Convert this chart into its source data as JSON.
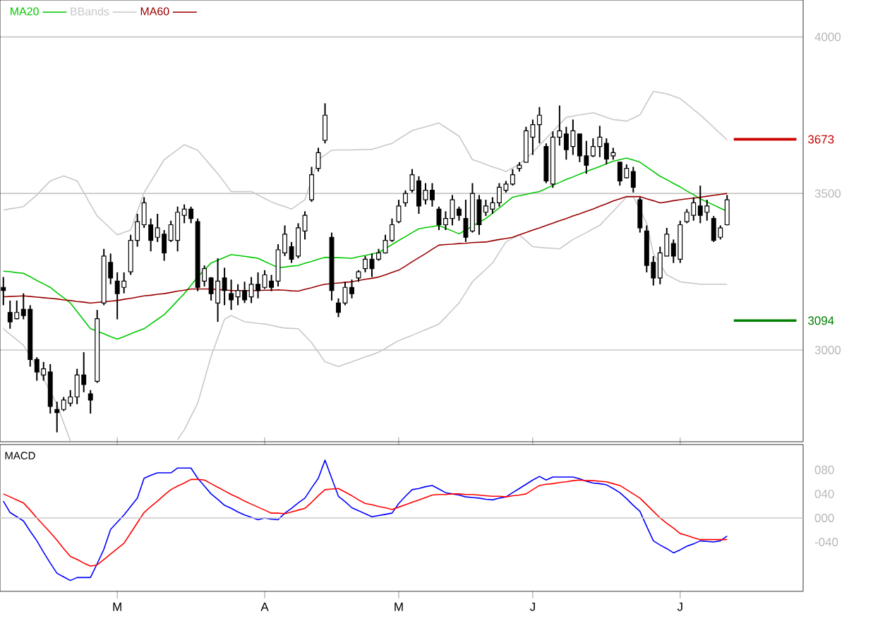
{
  "chart_data": [
    {
      "type": "candlestick",
      "color": "#000000",
      "categories": [
        null,
        null,
        null,
        null,
        null,
        null,
        null,
        null,
        null,
        null,
        null,
        null,
        null,
        null,
        null,
        null,
        null,
        null,
        null,
        null,
        null,
        null,
        null,
        null,
        null,
        null,
        null,
        null,
        null,
        null,
        null,
        null,
        null,
        null,
        null,
        null,
        null,
        null,
        null,
        null,
        null,
        null,
        null,
        null,
        null,
        null,
        null,
        null,
        null,
        null,
        null,
        null,
        null,
        null,
        null,
        null,
        null,
        null,
        null,
        null,
        null,
        null,
        null,
        null,
        null,
        null,
        null,
        null,
        null,
        null,
        null,
        null,
        null,
        null,
        null,
        null,
        null,
        null,
        null,
        null,
        null,
        null,
        null,
        null,
        null,
        null,
        null,
        null,
        null,
        null,
        null,
        null,
        null,
        null,
        null,
        null,
        null,
        null,
        null,
        null,
        null,
        null,
        null,
        null,
        null,
        null,
        null,
        null,
        null
      ],
      "ohlc": [
        [
          3200,
          3233,
          3143,
          3190
        ],
        [
          3120,
          3158,
          3068,
          3090
        ],
        [
          3100,
          3158,
          3098,
          3120
        ],
        [
          3130,
          3181,
          3098,
          3110
        ],
        [
          3130,
          3143,
          2947,
          2970
        ],
        [
          2970,
          2977,
          2902,
          2930
        ],
        [
          2920,
          2962,
          2902,
          2940
        ],
        [
          2930,
          2955,
          2797,
          2820
        ],
        [
          2810,
          2835,
          2737,
          2800
        ],
        [
          2810,
          2850,
          2805,
          2840
        ],
        [
          2830,
          2872,
          2820,
          2850
        ],
        [
          2850,
          2940,
          2827,
          2920
        ],
        [
          2920,
          2993,
          2865,
          2890
        ],
        [
          2860,
          2872,
          2797,
          2840
        ],
        [
          2900,
          3128,
          2895,
          3100
        ],
        [
          3150,
          3323,
          3143,
          3300
        ],
        [
          3280,
          3308,
          3210,
          3230
        ],
        [
          3220,
          3248,
          3098,
          3180
        ],
        [
          3200,
          3248,
          3181,
          3220
        ],
        [
          3250,
          3368,
          3240,
          3350
        ],
        [
          3350,
          3435,
          3330,
          3410
        ],
        [
          3400,
          3488,
          3390,
          3470
        ],
        [
          3400,
          3420,
          3315,
          3350
        ],
        [
          3360,
          3435,
          3345,
          3390
        ],
        [
          3370,
          3383,
          3285,
          3310
        ],
        [
          3350,
          3413,
          3345,
          3400
        ],
        [
          3350,
          3458,
          3315,
          3440
        ],
        [
          3430,
          3465,
          3405,
          3450
        ],
        [
          3450,
          3458,
          3405,
          3420
        ],
        [
          3410,
          3420,
          3188,
          3200
        ],
        [
          3220,
          3270,
          3203,
          3260
        ],
        [
          3230,
          3233,
          3158,
          3180
        ],
        [
          3150,
          3293,
          3090,
          3220
        ],
        [
          3230,
          3263,
          3143,
          3190
        ],
        [
          3180,
          3225,
          3128,
          3160
        ],
        [
          3170,
          3210,
          3143,
          3190
        ],
        [
          3190,
          3218,
          3150,
          3160
        ],
        [
          3170,
          3233,
          3150,
          3210
        ],
        [
          3210,
          3248,
          3165,
          3190
        ],
        [
          3200,
          3255,
          3195,
          3240
        ],
        [
          3220,
          3240,
          3188,
          3200
        ],
        [
          3220,
          3338,
          3203,
          3320
        ],
        [
          3310,
          3398,
          3300,
          3370
        ],
        [
          3330,
          3345,
          3278,
          3290
        ],
        [
          3300,
          3405,
          3293,
          3390
        ],
        [
          3380,
          3443,
          3353,
          3430
        ],
        [
          3480,
          3585,
          3473,
          3560
        ],
        [
          3580,
          3646,
          3570,
          3630
        ],
        [
          3670,
          3788,
          3660,
          3750
        ],
        [
          3360,
          3375,
          3158,
          3190
        ],
        [
          3150,
          3165,
          3105,
          3120
        ],
        [
          3150,
          3218,
          3143,
          3200
        ],
        [
          3200,
          3225,
          3165,
          3180
        ],
        [
          3230,
          3255,
          3218,
          3250
        ],
        [
          3260,
          3300,
          3248,
          3290
        ],
        [
          3290,
          3308,
          3233,
          3260
        ],
        [
          3290,
          3323,
          3285,
          3310
        ],
        [
          3310,
          3368,
          3308,
          3350
        ],
        [
          3350,
          3420,
          3345,
          3400
        ],
        [
          3410,
          3480,
          3405,
          3460
        ],
        [
          3470,
          3510,
          3458,
          3500
        ],
        [
          3510,
          3578,
          3503,
          3560
        ],
        [
          3540,
          3555,
          3435,
          3460
        ],
        [
          3480,
          3533,
          3465,
          3510
        ],
        [
          3510,
          3533,
          3458,
          3480
        ],
        [
          3450,
          3458,
          3383,
          3400
        ],
        [
          3400,
          3443,
          3383,
          3420
        ],
        [
          3420,
          3495,
          3398,
          3480
        ],
        [
          3450,
          3458,
          3413,
          3430
        ],
        [
          3420,
          3480,
          3345,
          3360
        ],
        [
          3380,
          3533,
          3375,
          3500
        ],
        [
          3480,
          3495,
          3368,
          3400
        ],
        [
          3440,
          3480,
          3428,
          3460
        ],
        [
          3450,
          3488,
          3435,
          3470
        ],
        [
          3470,
          3533,
          3458,
          3520
        ],
        [
          3510,
          3540,
          3503,
          3530
        ],
        [
          3530,
          3578,
          3525,
          3560
        ],
        [
          3580,
          3600,
          3570,
          3590
        ],
        [
          3600,
          3713,
          3600,
          3700
        ],
        [
          3680,
          3736,
          3623,
          3720
        ],
        [
          3720,
          3776,
          3660,
          3750
        ],
        [
          3650,
          3660,
          3533,
          3540
        ],
        [
          3530,
          3698,
          3518,
          3680
        ],
        [
          3680,
          3781,
          3653,
          3700
        ],
        [
          3690,
          3713,
          3608,
          3640
        ],
        [
          3650,
          3736,
          3623,
          3700
        ],
        [
          3690,
          3691,
          3600,
          3620
        ],
        [
          3620,
          3668,
          3563,
          3590
        ],
        [
          3620,
          3676,
          3616,
          3650
        ],
        [
          3650,
          3716,
          3616,
          3680
        ],
        [
          3660,
          3676,
          3593,
          3610
        ],
        [
          3620,
          3646,
          3608,
          3630
        ],
        [
          3600,
          3600,
          3525,
          3540
        ],
        [
          3550,
          3593,
          3548,
          3580
        ],
        [
          3570,
          3585,
          3503,
          3520
        ],
        [
          3480,
          3488,
          3375,
          3390
        ],
        [
          3380,
          3398,
          3248,
          3270
        ],
        [
          3280,
          3300,
          3206,
          3230
        ],
        [
          3230,
          3330,
          3210,
          3310
        ],
        [
          3300,
          3390,
          3300,
          3370
        ],
        [
          3340,
          3353,
          3278,
          3300
        ],
        [
          3290,
          3413,
          3278,
          3400
        ],
        [
          3410,
          3450,
          3405,
          3440
        ],
        [
          3430,
          3488,
          3413,
          3470
        ],
        [
          3460,
          3525,
          3405,
          3430
        ],
        [
          3440,
          3480,
          3413,
          3460
        ],
        [
          3420,
          3428,
          3345,
          3350
        ],
        [
          3360,
          3398,
          3353,
          3390
        ],
        [
          3400,
          3495,
          3398,
          3480
        ]
      ],
      "series": [
        {
          "type": "line",
          "name": "MA20",
          "color": "#00c800",
          "values": [
            3252,
            3250,
            3247,
            3245,
            3234,
            3222,
            3211,
            3200,
            3183,
            3167,
            3150,
            3123,
            3095,
            3068,
            3060,
            3052,
            3043,
            3035,
            3043,
            3052,
            3060,
            3068,
            3083,
            3098,
            3113,
            3135,
            3158,
            3180,
            3207,
            3233,
            3256,
            3278,
            3287,
            3296,
            3305,
            3302,
            3299,
            3296,
            3293,
            3283,
            3273,
            3263,
            3265,
            3268,
            3270,
            3277,
            3283,
            3290,
            3296,
            3295,
            3295,
            3294,
            3293,
            3298,
            3302,
            3307,
            3311,
            3324,
            3337,
            3350,
            3362,
            3375,
            3387,
            3391,
            3394,
            3398,
            3389,
            3380,
            3371,
            3383,
            3396,
            3408,
            3420,
            3437,
            3454,
            3471,
            3488,
            3493,
            3497,
            3502,
            3506,
            3516,
            3526,
            3535,
            3545,
            3553,
            3562,
            3570,
            3578,
            3586,
            3595,
            3603,
            3608,
            3613,
            3607,
            3600,
            3585,
            3570,
            3555,
            3544,
            3532,
            3521,
            3508,
            3496,
            3483,
            3473,
            3463,
            3453,
            3443
          ]
        },
        {
          "type": "line",
          "name": "BBands",
          "color": "#c8c8c8",
          "values": [
            3447,
            3451,
            3454,
            3458,
            3477,
            3495,
            3518,
            3540,
            3548,
            3556,
            3548,
            3540,
            3503,
            3465,
            3428,
            3408,
            3388,
            3368,
            3376,
            3383,
            3443,
            3503,
            3538,
            3573,
            3608,
            3624,
            3640,
            3656,
            3647,
            3638,
            3613,
            3588,
            3563,
            3535,
            3506,
            3506,
            3506,
            3506,
            3495,
            3484,
            3473,
            3465,
            3458,
            3450,
            3465,
            3480,
            3544,
            3608,
            3623,
            3638,
            3639,
            3639,
            3639,
            3640,
            3640,
            3641,
            3647,
            3654,
            3660,
            3674,
            3687,
            3701,
            3707,
            3713,
            3719,
            3725,
            3711,
            3697,
            3683,
            3646,
            3608,
            3601,
            3593,
            3585,
            3578,
            3570,
            3582,
            3593,
            3612,
            3631,
            3654,
            3676,
            3698,
            3721,
            3743,
            3747,
            3751,
            3754,
            3758,
            3751,
            3743,
            3736,
            3734,
            3731,
            3741,
            3751,
            3789,
            3826,
            3822,
            3818,
            3811,
            3803,
            3786,
            3768,
            3751,
            3731,
            3711,
            3691,
            3671
          ]
        },
        {
          "type": "line",
          "color": "#c8c8c8",
          "values": [
            3068,
            3050,
            3033,
            3015,
            2981,
            2947,
            2907,
            2867,
            2827,
            2767,
            2710,
            null,
            null,
            null,
            null,
            null,
            null,
            null,
            null,
            null,
            null,
            null,
            null,
            null,
            null,
            null,
            2714,
            2745,
            2788,
            2830,
            2905,
            2980,
            3039,
            3098,
            3110,
            3100,
            3090,
            3088,
            3085,
            3083,
            3079,
            3074,
            3070,
            3069,
            3068,
            3046,
            3023,
            2993,
            2962,
            2955,
            2947,
            2955,
            2962,
            2970,
            2978,
            2985,
            2993,
            3005,
            3018,
            3030,
            3039,
            3047,
            3056,
            3065,
            3074,
            3083,
            3105,
            3128,
            3150,
            3184,
            3218,
            3238,
            3258,
            3278,
            3312,
            3345,
            3357,
            3368,
            3349,
            3330,
            3328,
            3326,
            3325,
            3323,
            3338,
            3353,
            3364,
            3375,
            3387,
            3398,
            3421,
            3443,
            3466,
            3488,
            3490,
            3448,
            3405,
            3308,
            3274,
            3240,
            3229,
            3218,
            3215,
            3213,
            3210,
            3210,
            3210,
            3210,
            3210
          ]
        },
        {
          "type": "line",
          "name": "MA60",
          "color": "#990000",
          "values": [
            3170,
            3171,
            3172,
            3173,
            3171,
            3169,
            3167,
            3165,
            3163,
            3160,
            3158,
            3155,
            3153,
            3150,
            3152,
            3154,
            3156,
            3158,
            3162,
            3165,
            3169,
            3173,
            3175,
            3178,
            3180,
            3184,
            3188,
            3191,
            3195,
            3195,
            3195,
            3195,
            3193,
            3192,
            3190,
            3190,
            3190,
            3190,
            3190,
            3191,
            3191,
            3192,
            3191,
            3189,
            3188,
            3194,
            3199,
            3205,
            3210,
            3212,
            3214,
            3216,
            3218,
            3222,
            3226,
            3229,
            3233,
            3240,
            3248,
            3255,
            3268,
            3282,
            3295,
            3308,
            3322,
            3335,
            3337,
            3338,
            3340,
            3341,
            3343,
            3344,
            3345,
            3349,
            3353,
            3356,
            3360,
            3368,
            3375,
            3383,
            3390,
            3398,
            3405,
            3413,
            3420,
            3428,
            3435,
            3443,
            3450,
            3459,
            3467,
            3476,
            3483,
            3490,
            3490,
            3490,
            3483,
            3477,
            3470,
            3473,
            3477,
            3480,
            3483,
            3485,
            3488,
            3491,
            3494,
            3497,
            3500
          ]
        }
      ],
      "ylim": [
        2707,
        4118
      ],
      "yticks": [
        3000,
        3500,
        4000
      ],
      "grid": "y",
      "legend": "top left",
      "tick_labels": "y",
      "ref_lines": [
        {
          "axis": "y",
          "value": 3673,
          "label": "3673",
          "color": "#cc0000"
        },
        {
          "axis": "y",
          "value": 3094,
          "label": "3094",
          "color": "#008000"
        }
      ]
    },
    {
      "type": "line",
      "title": "MACD",
      "categories": [
        null,
        null,
        null,
        null,
        null,
        null,
        null,
        null,
        null,
        null,
        null,
        null,
        null,
        null,
        null,
        null,
        null,
        "M",
        null,
        null,
        null,
        null,
        null,
        null,
        null,
        null,
        null,
        null,
        null,
        null,
        null,
        null,
        null,
        null,
        null,
        null,
        null,
        null,
        null,
        "A",
        null,
        null,
        null,
        null,
        null,
        null,
        null,
        null,
        null,
        null,
        null,
        null,
        null,
        null,
        null,
        null,
        null,
        null,
        null,
        "M",
        null,
        null,
        null,
        null,
        null,
        null,
        null,
        null,
        null,
        null,
        null,
        null,
        null,
        null,
        null,
        null,
        null,
        null,
        null,
        "J",
        null,
        null,
        null,
        null,
        null,
        null,
        null,
        null,
        null,
        null,
        null,
        null,
        null,
        null,
        null,
        null,
        null,
        null,
        null,
        null,
        null,
        "J",
        null,
        null,
        null,
        null,
        null,
        null,
        null
      ],
      "series": [
        {
          "color": "#0000ff",
          "values": [
            28,
            9,
            2,
            -5,
            -22,
            -38,
            -57,
            -75,
            -92,
            -98,
            -104,
            -99,
            -99,
            -99,
            -76,
            -52,
            -19,
            -7,
            5,
            19,
            33,
            66,
            71,
            75,
            75,
            75,
            83,
            83,
            83,
            66,
            53,
            40,
            31,
            21,
            16,
            10,
            5,
            1,
            -3,
            0,
            -2,
            -3,
            8,
            16,
            25,
            33,
            50,
            66,
            96,
            66,
            36,
            27,
            17,
            12,
            7,
            2,
            4,
            6,
            8,
            24,
            36,
            47,
            49,
            52,
            54,
            48,
            42,
            40,
            38,
            35,
            34,
            33,
            31,
            30,
            33,
            35,
            42,
            49,
            56,
            63,
            69,
            63,
            68,
            68,
            68,
            68,
            65,
            61,
            58,
            57,
            55,
            49,
            42,
            32,
            21,
            11,
            -14,
            -38,
            -45,
            -51,
            -58,
            -53,
            -47,
            -43,
            -38,
            -39,
            -40,
            -38,
            -30
          ]
        },
        {
          "color": "#ff0000",
          "values": [
            40,
            35,
            30,
            25,
            13,
            0,
            -12,
            -24,
            -37,
            -51,
            -64,
            -69,
            -75,
            -80,
            -78,
            -69,
            -60,
            -51,
            -42,
            -25,
            -8,
            9,
            19,
            28,
            38,
            47,
            53,
            58,
            64,
            64,
            63,
            57,
            51,
            45,
            39,
            34,
            28,
            23,
            18,
            13,
            8,
            8,
            7,
            10,
            13,
            16,
            26,
            37,
            47,
            48,
            49,
            43,
            37,
            30,
            24,
            22,
            19,
            17,
            14,
            18,
            22,
            26,
            30,
            34,
            38,
            39,
            39,
            40,
            40,
            39,
            39,
            38,
            37,
            36,
            36,
            35,
            37,
            38,
            40,
            47,
            54,
            56,
            57,
            59,
            60,
            62,
            63,
            62,
            62,
            61,
            60,
            57,
            54,
            47,
            40,
            33,
            22,
            11,
            0,
            -9,
            -17,
            -26,
            -29,
            -33,
            -36,
            -36,
            -36,
            -36,
            -36
          ]
        }
      ],
      "ylim": [
        -122,
        122
      ],
      "yticks": [
        {
          "value": -40,
          "label": "-040"
        },
        {
          "value": 0,
          "label": "000"
        },
        {
          "value": 40,
          "label": "040"
        },
        {
          "value": 80,
          "label": "080"
        }
      ],
      "ref_lines": [
        {
          "axis": "y",
          "value": 0,
          "color": "#c8c8c8"
        }
      ]
    }
  ]
}
